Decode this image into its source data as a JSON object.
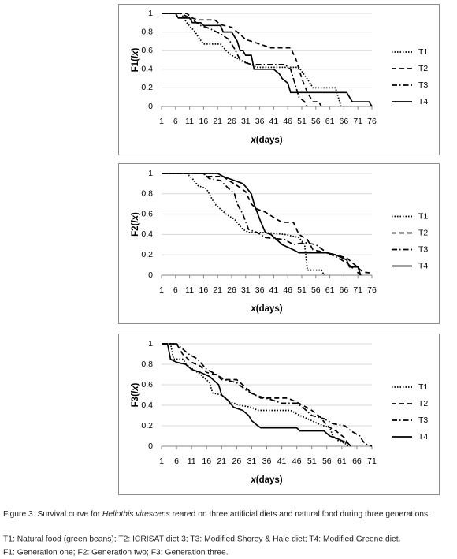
{
  "chart_data": [
    {
      "type": "line",
      "ylabel": {
        "prefix": "F1(",
        "italic": "lx",
        "suffix": ")"
      },
      "xlabel": {
        "italic": "x",
        "text": "(days)"
      },
      "xlim": [
        1,
        76
      ],
      "xticks": [
        1,
        6,
        11,
        16,
        21,
        26,
        31,
        36,
        41,
        46,
        51,
        56,
        61,
        66,
        71,
        76
      ],
      "ylim": [
        0,
        1
      ],
      "yticks": [
        0,
        0.2,
        0.4,
        0.6,
        0.8,
        1
      ],
      "grid": true,
      "legend": "right",
      "series": [
        {
          "name": "T1",
          "color": "#000000",
          "dash": "dotted",
          "x": [
            1,
            8,
            10,
            13,
            14,
            16,
            22,
            24,
            26,
            29,
            33,
            35,
            50,
            54,
            55,
            63,
            65
          ],
          "values": [
            1,
            1,
            0.9,
            0.8,
            0.75,
            0.67,
            0.67,
            0.6,
            0.55,
            0.5,
            0.45,
            0.42,
            0.42,
            0.25,
            0.2,
            0.2,
            0
          ]
        },
        {
          "name": "T2",
          "color": "#000000",
          "dash": "dashed",
          "x": [
            1,
            10,
            12,
            14,
            20,
            22,
            26,
            28,
            31,
            36,
            40,
            47,
            49,
            51,
            53,
            55,
            57,
            58
          ],
          "values": [
            1,
            1,
            0.95,
            0.93,
            0.93,
            0.88,
            0.85,
            0.8,
            0.72,
            0.67,
            0.63,
            0.63,
            0.5,
            0.3,
            0.15,
            0.05,
            0.05,
            0
          ]
        },
        {
          "name": "T3",
          "color": "#000000",
          "dash": "dashdot",
          "x": [
            1,
            8,
            11,
            15,
            18,
            22,
            25,
            27,
            29,
            30,
            33,
            45,
            47,
            49,
            50,
            52,
            53
          ],
          "values": [
            1,
            1,
            0.95,
            0.87,
            0.84,
            0.78,
            0.72,
            0.62,
            0.5,
            0.48,
            0.45,
            0.45,
            0.4,
            0.2,
            0.1,
            0.05,
            0
          ]
        },
        {
          "name": "T4",
          "color": "#000000",
          "dash": "solid",
          "x": [
            1,
            6,
            7,
            11,
            12,
            15,
            16,
            22,
            23,
            26,
            27,
            28,
            29,
            30,
            31,
            33,
            34,
            41,
            43,
            44,
            46,
            47,
            67,
            69,
            75,
            76
          ],
          "values": [
            1,
            1,
            0.95,
            0.95,
            0.9,
            0.9,
            0.87,
            0.87,
            0.8,
            0.8,
            0.75,
            0.7,
            0.6,
            0.6,
            0.55,
            0.55,
            0.4,
            0.4,
            0.35,
            0.3,
            0.25,
            0.15,
            0.15,
            0.05,
            0.05,
            0
          ]
        }
      ]
    },
    {
      "type": "line",
      "ylabel": {
        "prefix": "F2(",
        "italic": "lx",
        "suffix": ")"
      },
      "xlabel": {
        "italic": "x",
        "text": "(days)"
      },
      "xlim": [
        1,
        76
      ],
      "xticks": [
        1,
        6,
        11,
        16,
        21,
        26,
        31,
        36,
        41,
        46,
        51,
        56,
        61,
        66,
        71,
        76
      ],
      "ylim": [
        0,
        1
      ],
      "yticks": [
        0,
        0.2,
        0.4,
        0.6,
        0.8,
        1
      ],
      "grid": true,
      "legend": "right",
      "series": [
        {
          "name": "T1",
          "color": "#000000",
          "dash": "dotted",
          "x": [
            1,
            10,
            12,
            14,
            17,
            20,
            24,
            27,
            30,
            32,
            38,
            45,
            50,
            52,
            53,
            58,
            59
          ],
          "values": [
            1,
            1,
            0.95,
            0.88,
            0.85,
            0.7,
            0.6,
            0.55,
            0.45,
            0.42,
            0.42,
            0.4,
            0.37,
            0.3,
            0.05,
            0.05,
            0
          ]
        },
        {
          "name": "T2",
          "color": "#000000",
          "dash": "dashed",
          "x": [
            1,
            16,
            17,
            23,
            25,
            28,
            31,
            33,
            35,
            38,
            42,
            44,
            48,
            50,
            53,
            55,
            58,
            63,
            67,
            70,
            72,
            73,
            76
          ],
          "values": [
            1,
            1,
            0.97,
            0.97,
            0.93,
            0.88,
            0.82,
            0.7,
            0.65,
            0.62,
            0.55,
            0.52,
            0.52,
            0.4,
            0.35,
            0.25,
            0.23,
            0.2,
            0.17,
            0.1,
            0.05,
            0.03,
            0.02
          ]
        },
        {
          "name": "T3",
          "color": "#000000",
          "dash": "dashdot",
          "x": [
            1,
            16,
            18,
            22,
            25,
            27,
            28,
            30,
            32,
            35,
            38,
            45,
            48,
            52,
            56,
            60,
            64,
            67,
            70,
            72
          ],
          "values": [
            1,
            1,
            0.95,
            0.93,
            0.85,
            0.8,
            0.7,
            0.6,
            0.45,
            0.42,
            0.37,
            0.35,
            0.3,
            0.32,
            0.3,
            0.22,
            0.17,
            0.12,
            0.05,
            0
          ]
        },
        {
          "name": "T4",
          "color": "#000000",
          "dash": "solid",
          "x": [
            1,
            21,
            23,
            27,
            30,
            31,
            33,
            34,
            36,
            38,
            40,
            42,
            44,
            48,
            50,
            60,
            63,
            67,
            68,
            71,
            72
          ],
          "values": [
            1,
            1,
            0.97,
            0.93,
            0.9,
            0.87,
            0.8,
            0.7,
            0.55,
            0.42,
            0.4,
            0.35,
            0.3,
            0.25,
            0.22,
            0.22,
            0.2,
            0.15,
            0.08,
            0.08,
            0
          ]
        }
      ]
    },
    {
      "type": "line",
      "ylabel": {
        "prefix": "F3(",
        "italic": "lx",
        "suffix": ")"
      },
      "xlabel": {
        "italic": "x",
        "text": "(days)"
      },
      "xlim": [
        1,
        71
      ],
      "xticks": [
        1,
        6,
        11,
        16,
        21,
        26,
        31,
        36,
        41,
        46,
        51,
        56,
        61,
        66,
        71
      ],
      "ylim": [
        0,
        1
      ],
      "yticks": [
        0,
        0.2,
        0.4,
        0.6,
        0.8,
        1
      ],
      "grid": true,
      "legend": "right",
      "series": [
        {
          "name": "T1",
          "color": "#000000",
          "dash": "dotted",
          "x": [
            1,
            4,
            5,
            8,
            10,
            14,
            17,
            18,
            21,
            24,
            27,
            31,
            33,
            44,
            47,
            51,
            53,
            57,
            58,
            60,
            62,
            63
          ],
          "values": [
            1,
            1,
            0.85,
            0.85,
            0.78,
            0.7,
            0.62,
            0.52,
            0.5,
            0.43,
            0.4,
            0.38,
            0.35,
            0.35,
            0.3,
            0.25,
            0.22,
            0.18,
            0.1,
            0.05,
            0.03,
            0
          ]
        },
        {
          "name": "T2",
          "color": "#000000",
          "dash": "dashed",
          "x": [
            1,
            6,
            8,
            11,
            14,
            16,
            19,
            21,
            26,
            28,
            31,
            34,
            43,
            46,
            48,
            51,
            54,
            56,
            59,
            62,
            63,
            64
          ],
          "values": [
            1,
            1,
            0.9,
            0.82,
            0.78,
            0.72,
            0.7,
            0.65,
            0.65,
            0.6,
            0.52,
            0.47,
            0.47,
            0.43,
            0.4,
            0.35,
            0.28,
            0.2,
            0.15,
            0.08,
            0.03,
            0
          ]
        },
        {
          "name": "T3",
          "color": "#000000",
          "dash": "dashdot",
          "x": [
            1,
            6,
            8,
            10,
            13,
            16,
            18,
            22,
            26,
            29,
            32,
            38,
            41,
            46,
            48,
            51,
            55,
            58,
            62,
            64,
            67,
            68,
            69,
            71
          ],
          "values": [
            1,
            1,
            0.95,
            0.9,
            0.85,
            0.75,
            0.72,
            0.65,
            0.62,
            0.55,
            0.5,
            0.45,
            0.42,
            0.42,
            0.38,
            0.3,
            0.27,
            0.22,
            0.2,
            0.15,
            0.1,
            0.05,
            0.02,
            0
          ]
        },
        {
          "name": "T4",
          "color": "#000000",
          "dash": "solid",
          "x": [
            1,
            3,
            4,
            6,
            9,
            11,
            14,
            17,
            20,
            21,
            23,
            25,
            28,
            30,
            31,
            33,
            34,
            46,
            47,
            55,
            57,
            59,
            63,
            64
          ],
          "values": [
            1,
            1,
            0.85,
            0.82,
            0.8,
            0.75,
            0.72,
            0.68,
            0.6,
            0.5,
            0.45,
            0.38,
            0.35,
            0.3,
            0.25,
            0.2,
            0.18,
            0.18,
            0.15,
            0.15,
            0.1,
            0.08,
            0.03,
            0
          ]
        }
      ]
    }
  ],
  "caption": {
    "figure": {
      "prefix": "Figure 3. Survival curve for ",
      "species": "Heliothis virescens",
      "suffix": " reared on three artificial diets and natural food during three generations."
    },
    "treatments": "T1: Natural food (green beans); T2: ICRISAT diet 3; T3: Modified Shorey & Hale diet; T4: Modified Greene diet.",
    "generations": "F1: Generation one; F2: Generation two; F3: Generation three."
  }
}
